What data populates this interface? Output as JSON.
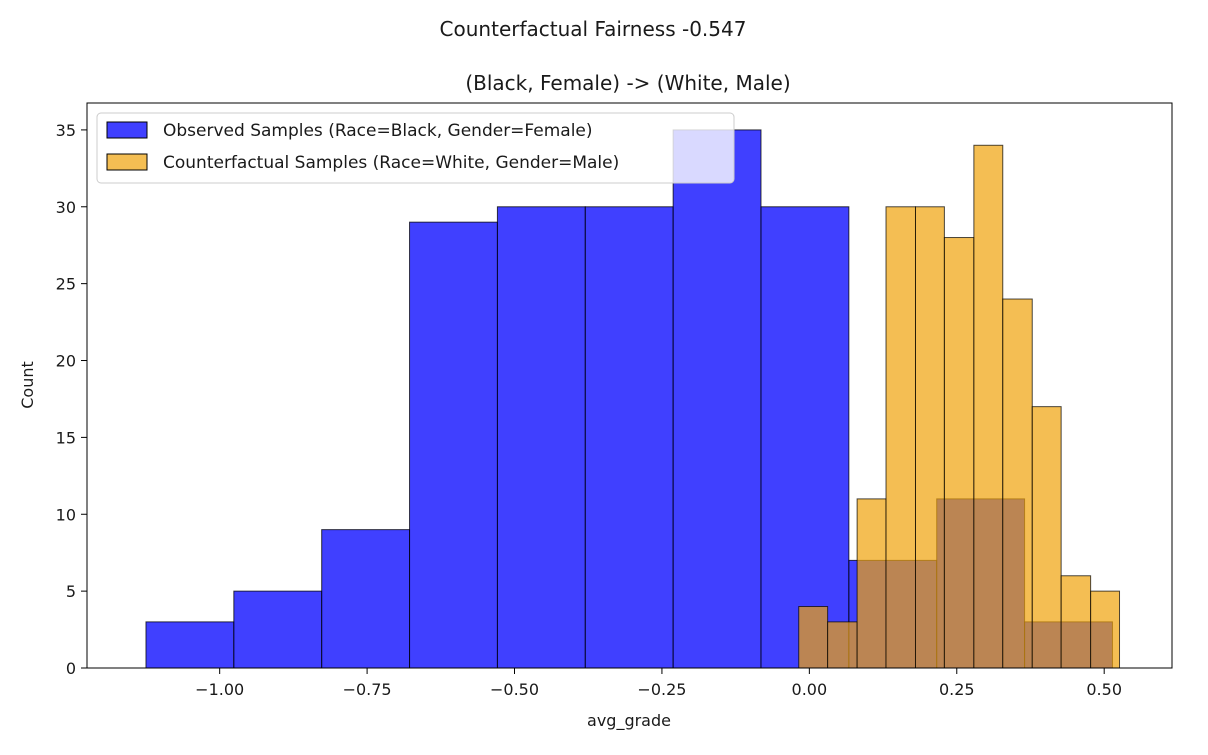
{
  "chart_data": {
    "type": "histogram",
    "suptitle": "Counterfactual Fairness -0.547",
    "title": "(Black, Female) -> (White, Male)",
    "xlabel": "avg_grade",
    "ylabel": "Count",
    "xlim": [
      -1.225,
      0.615
    ],
    "ylim": [
      0,
      36.75
    ],
    "xticks": [
      -1.0,
      -0.75,
      -0.5,
      -0.25,
      0.0,
      0.25,
      0.5
    ],
    "xtick_labels": [
      "−1.00",
      "−0.75",
      "−0.50",
      "−0.25",
      "0.00",
      "0.25",
      "0.50"
    ],
    "yticks": [
      0,
      5,
      10,
      15,
      20,
      25,
      30,
      35
    ],
    "ytick_labels": [
      "0",
      "5",
      "10",
      "15",
      "20",
      "25",
      "30",
      "35"
    ],
    "legend": {
      "position": "top-left",
      "entries": [
        {
          "label": "Observed Samples (Race=Black, Gender=Female)",
          "color": "#0000ff",
          "alpha": 0.75
        },
        {
          "label": "Counterfactual Samples (Race=White, Gender=Male)",
          "color": "#f0a30a",
          "alpha": 0.7
        }
      ]
    },
    "series": [
      {
        "name": "Observed Samples (Race=Black, Gender=Female)",
        "color": "#0000ff",
        "alpha": 0.75,
        "bins": [
          {
            "x0": -1.125,
            "x1": -0.976,
            "count": 3
          },
          {
            "x0": -0.976,
            "x1": -0.827,
            "count": 5
          },
          {
            "x0": -0.827,
            "x1": -0.678,
            "count": 9
          },
          {
            "x0": -0.678,
            "x1": -0.529,
            "count": 29
          },
          {
            "x0": -0.529,
            "x1": -0.38,
            "count": 30
          },
          {
            "x0": -0.38,
            "x1": -0.231,
            "count": 30
          },
          {
            "x0": -0.231,
            "x1": -0.082,
            "count": 35
          },
          {
            "x0": -0.082,
            "x1": 0.067,
            "count": 30
          },
          {
            "x0": 0.067,
            "x1": 0.216,
            "count": 7
          },
          {
            "x0": 0.216,
            "x1": 0.365,
            "count": 11
          },
          {
            "x0": 0.365,
            "x1": 0.514,
            "count": 3
          }
        ]
      },
      {
        "name": "Counterfactual Samples (Race=White, Gender=Male)",
        "color": "#f0a30a",
        "alpha": 0.7,
        "bins": [
          {
            "x0": -0.018,
            "x1": 0.031,
            "count": 4
          },
          {
            "x0": 0.031,
            "x1": 0.081,
            "count": 3
          },
          {
            "x0": 0.081,
            "x1": 0.13,
            "count": 11
          },
          {
            "x0": 0.13,
            "x1": 0.18,
            "count": 30
          },
          {
            "x0": 0.18,
            "x1": 0.229,
            "count": 30
          },
          {
            "x0": 0.229,
            "x1": 0.279,
            "count": 28
          },
          {
            "x0": 0.279,
            "x1": 0.328,
            "count": 34
          },
          {
            "x0": 0.328,
            "x1": 0.378,
            "count": 24
          },
          {
            "x0": 0.378,
            "x1": 0.427,
            "count": 17
          },
          {
            "x0": 0.427,
            "x1": 0.477,
            "count": 6
          },
          {
            "x0": 0.477,
            "x1": 0.526,
            "count": 5
          }
        ]
      }
    ]
  }
}
